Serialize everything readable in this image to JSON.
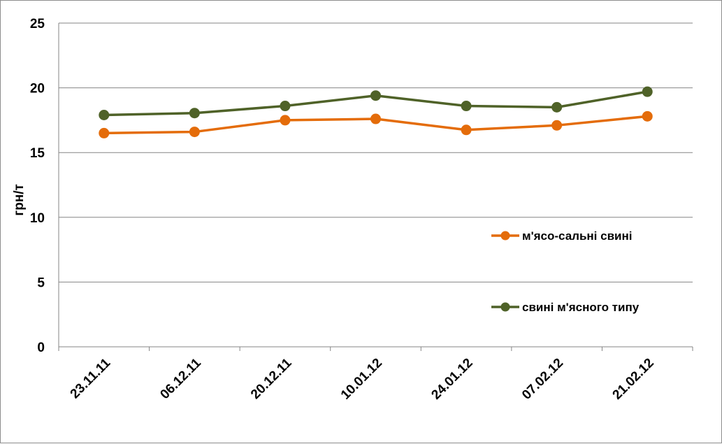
{
  "chart_data": {
    "type": "line",
    "categories": [
      "23.11.11",
      "06.12.11",
      "20.12.11",
      "10.01.12",
      "24.01.12",
      "07.02.12",
      "21.02.12"
    ],
    "ylabel": "грн/т",
    "ylim": [
      0,
      25
    ],
    "yticks": [
      0,
      5,
      10,
      15,
      20,
      25
    ],
    "grid": true,
    "legend_position": "right",
    "series": [
      {
        "name": "м'ясо-сальні свині",
        "color": "#e46c0a",
        "values": [
          16.5,
          16.6,
          17.5,
          17.6,
          16.75,
          17.1,
          17.8
        ]
      },
      {
        "name": "свині м'ясного типу",
        "color": "#4f6228",
        "values": [
          17.9,
          18.05,
          18.6,
          19.4,
          18.6,
          18.5,
          19.7
        ]
      }
    ]
  }
}
